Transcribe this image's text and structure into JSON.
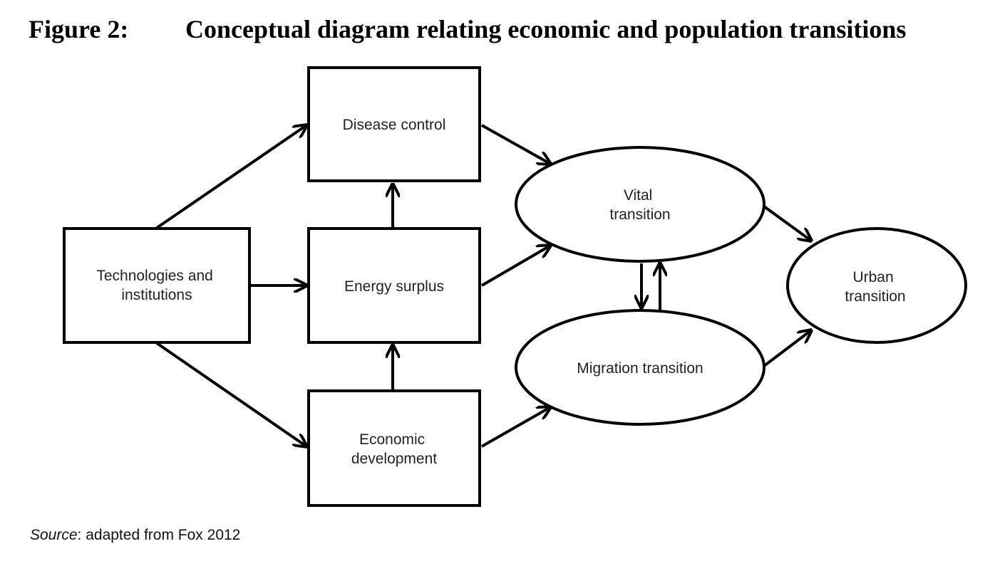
{
  "figure": {
    "label": "Figure 2:",
    "title": "Conceptual diagram relating economic and population transitions"
  },
  "nodes": {
    "technologies": {
      "lines": [
        "Technologies and",
        "institutions"
      ]
    },
    "disease_control": {
      "lines": [
        "Disease control"
      ]
    },
    "energy_surplus": {
      "lines": [
        "Energy surplus"
      ]
    },
    "economic_development": {
      "lines": [
        "Economic",
        "development"
      ]
    },
    "vital_transition": {
      "lines": [
        "Vital",
        "transition"
      ]
    },
    "migration_transition": {
      "lines": [
        "Migration transition"
      ]
    },
    "urban_transition": {
      "lines": [
        "Urban",
        "transition"
      ]
    }
  },
  "edges": [
    {
      "from": "technologies",
      "to": "disease_control"
    },
    {
      "from": "technologies",
      "to": "energy_surplus"
    },
    {
      "from": "technologies",
      "to": "economic_development"
    },
    {
      "from": "energy_surplus",
      "to": "disease_control"
    },
    {
      "from": "economic_development",
      "to": "energy_surplus"
    },
    {
      "from": "disease_control",
      "to": "vital_transition"
    },
    {
      "from": "energy_surplus",
      "to": "vital_transition"
    },
    {
      "from": "economic_development",
      "to": "migration_transition"
    },
    {
      "from": "vital_transition",
      "to": "migration_transition"
    },
    {
      "from": "migration_transition",
      "to": "vital_transition"
    },
    {
      "from": "vital_transition",
      "to": "urban_transition"
    },
    {
      "from": "migration_transition",
      "to": "urban_transition"
    }
  ],
  "source": {
    "label": "Source",
    "text": ": adapted from Fox 2012"
  }
}
